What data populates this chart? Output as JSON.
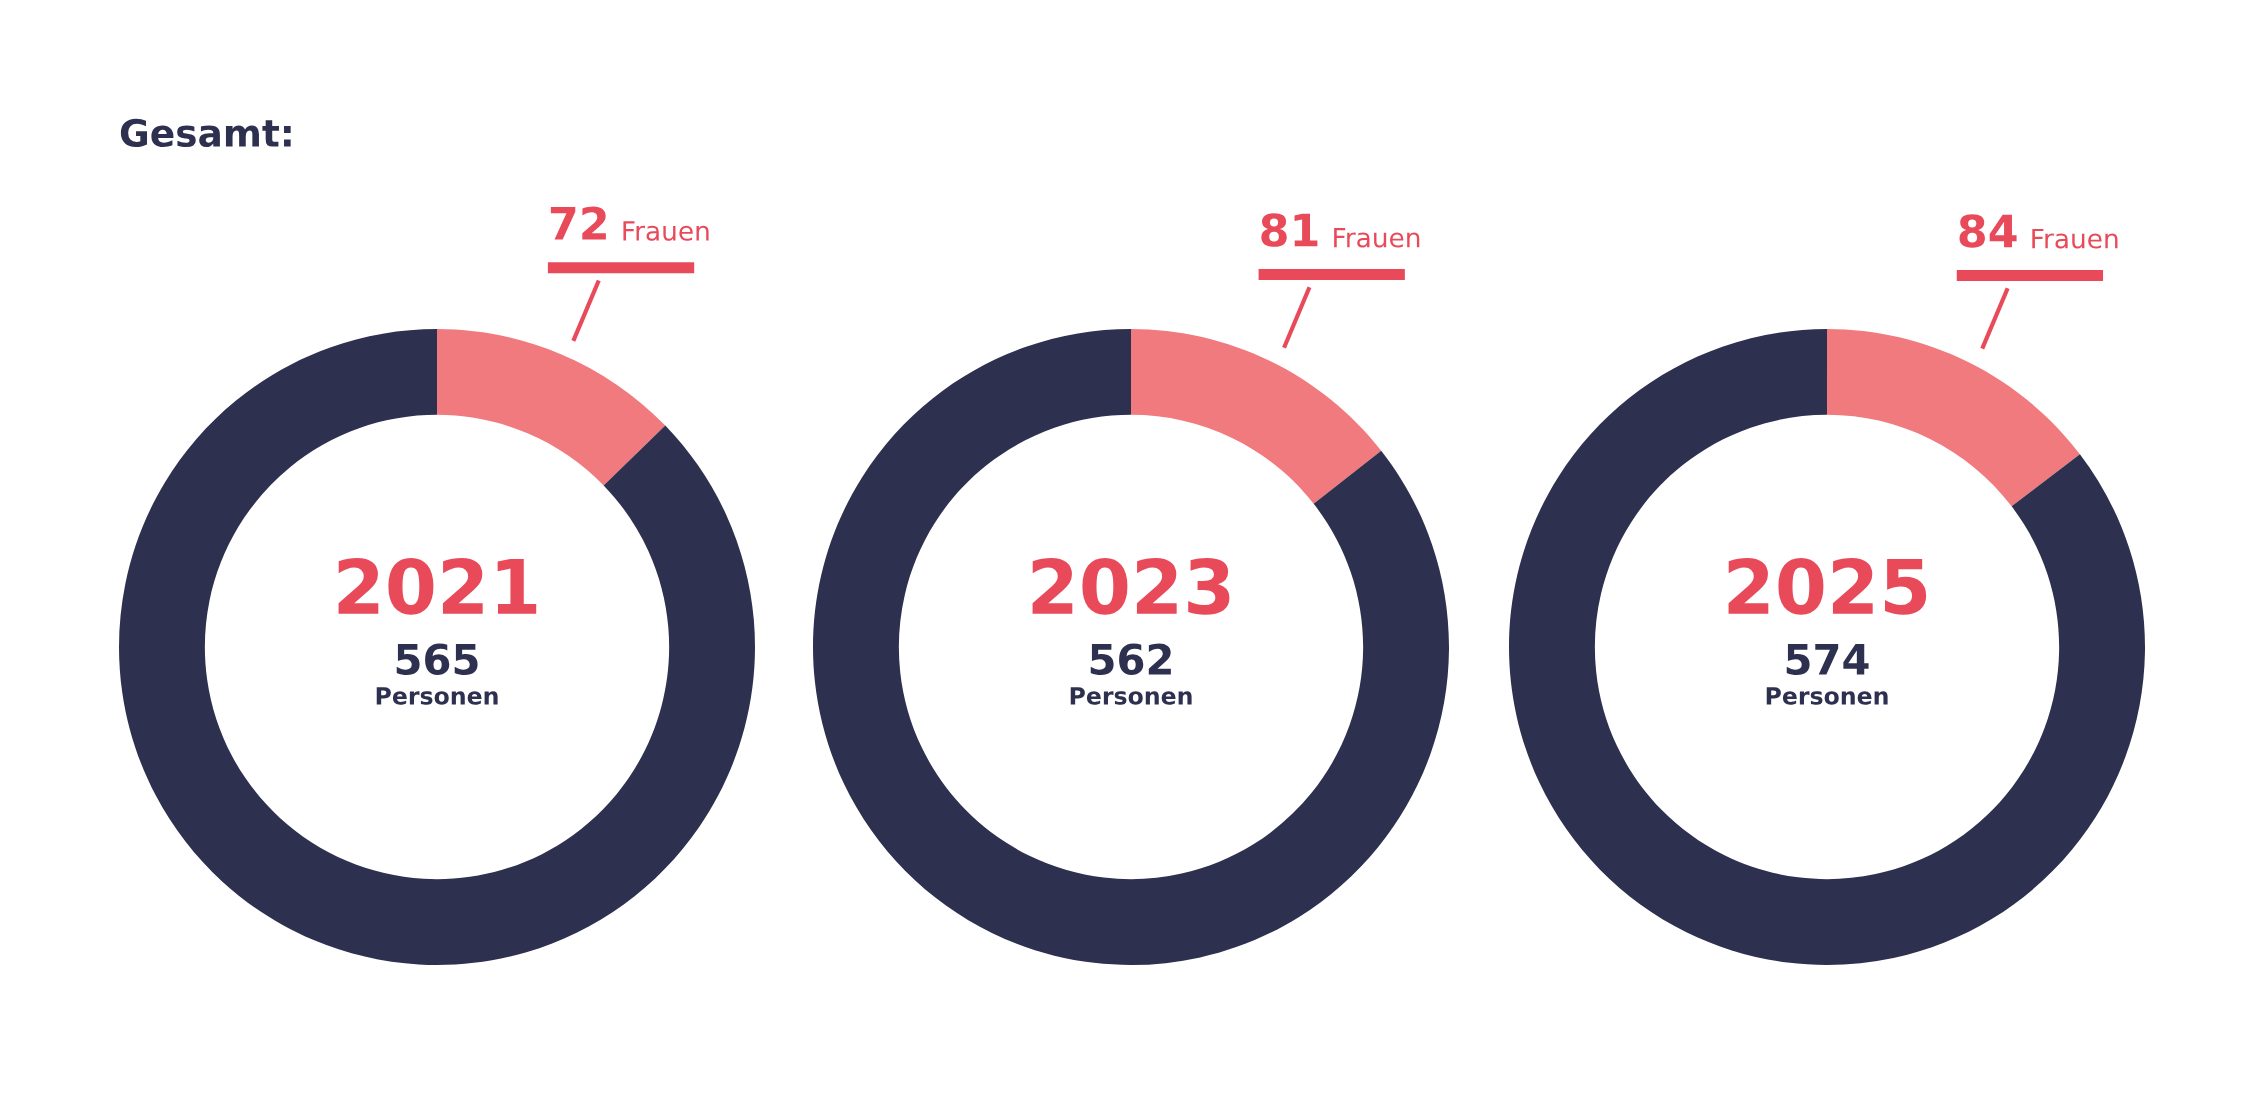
{
  "chart_data": [
    {
      "type": "donut",
      "title": "2021",
      "categories": [
        "Frauen",
        null
      ],
      "values": [
        72,
        493
      ],
      "colors": [
        "#f07a7d",
        "#2e3050"
      ],
      "value_labels": [
        "72",
        null
      ],
      "legend": false,
      "annotations": [
        "Gesamt:",
        "565",
        "Personen"
      ]
    },
    {
      "type": "donut",
      "title": "2023",
      "categories": [
        "Frauen",
        null
      ],
      "values": [
        81,
        481
      ],
      "colors": [
        "#f07a7d",
        "#2e3050"
      ],
      "value_labels": [
        "81",
        null
      ],
      "legend": false,
      "annotations": [
        "562",
        "Personen"
      ]
    },
    {
      "type": "donut",
      "title": "2025",
      "categories": [
        "Frauen",
        null
      ],
      "values": [
        84,
        490
      ],
      "colors": [
        "#f07a7d",
        "#2e3050"
      ],
      "value_labels": [
        "84",
        null
      ],
      "legend": false,
      "annotations": [
        "574",
        "Personen"
      ]
    }
  ]
}
